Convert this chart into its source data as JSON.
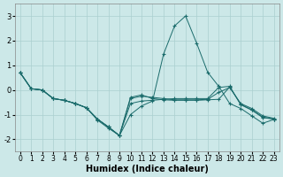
{
  "xlabel": "Humidex (Indice chaleur)",
  "bg_color": "#cce8e8",
  "grid_color": "#aacfcf",
  "line_color": "#1a6b6b",
  "xlim": [
    0,
    23
  ],
  "ylim": [
    -2.5,
    3.5
  ],
  "yticks": [
    -2,
    -1,
    0,
    1,
    2,
    3
  ],
  "xticks": [
    0,
    1,
    2,
    3,
    4,
    5,
    6,
    7,
    8,
    9,
    10,
    11,
    12,
    13,
    14,
    15,
    16,
    17,
    18,
    19,
    20,
    21,
    22,
    23
  ],
  "lines": [
    [
      0.7,
      0.05,
      0.0,
      -0.35,
      -0.42,
      -0.55,
      -0.72,
      -1.18,
      -1.5,
      -1.85,
      -1.0,
      -0.65,
      -0.45,
      1.45,
      2.6,
      3.0,
      1.9,
      0.72,
      0.15,
      -0.55,
      -0.75,
      -1.05,
      -1.35,
      -1.2
    ],
    [
      0.7,
      0.05,
      0.0,
      -0.35,
      -0.42,
      -0.55,
      -0.72,
      -1.18,
      -1.5,
      -1.85,
      -0.35,
      -0.25,
      -0.3,
      -0.35,
      -0.4,
      -0.4,
      -0.4,
      -0.38,
      -0.1,
      0.1,
      -0.55,
      -0.75,
      -1.05,
      -1.15
    ],
    [
      0.7,
      0.05,
      0.0,
      -0.35,
      -0.42,
      -0.55,
      -0.72,
      -1.18,
      -1.5,
      -1.85,
      -0.3,
      -0.2,
      -0.35,
      -0.4,
      -0.42,
      -0.42,
      -0.42,
      -0.4,
      -0.38,
      0.12,
      -0.58,
      -0.8,
      -1.1,
      -1.18
    ],
    [
      0.7,
      0.05,
      0.0,
      -0.35,
      -0.42,
      -0.55,
      -0.72,
      -1.22,
      -1.55,
      -1.85,
      -0.55,
      -0.45,
      -0.42,
      -0.38,
      -0.35,
      -0.35,
      -0.35,
      -0.35,
      0.1,
      0.15,
      -0.6,
      -0.82,
      -1.12,
      -1.18
    ]
  ]
}
